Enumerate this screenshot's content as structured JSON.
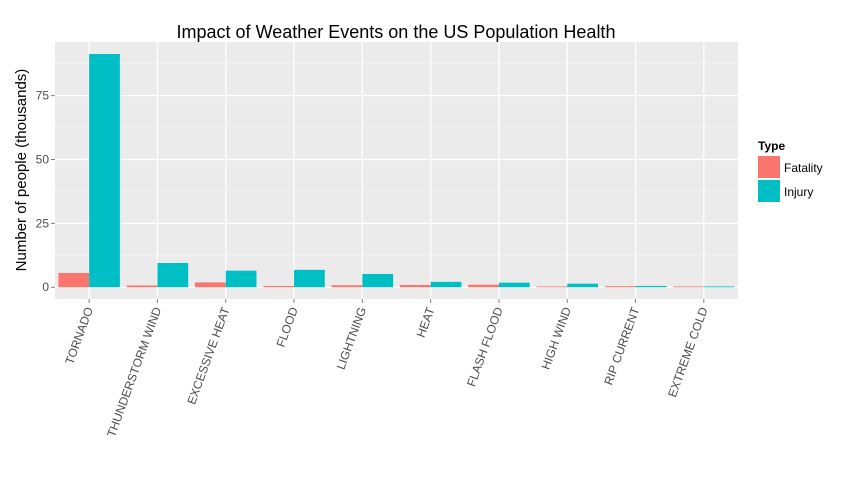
{
  "chart_data": {
    "type": "bar",
    "title": "Impact of Weather Events on the US Population Health",
    "xlabel": "",
    "ylabel": "Number of people (thousands)",
    "categories": [
      "TORNADO",
      "THUNDERSTORM WIND",
      "EXCESSIVE HEAT",
      "FLOOD",
      "LIGHTNING",
      "HEAT",
      "FLASH FLOOD",
      "HIGH WIND",
      "RIP CURRENT",
      "EXTREME COLD"
    ],
    "series": [
      {
        "name": "Fatality",
        "values": [
          5.6,
          0.7,
          1.9,
          0.5,
          0.8,
          0.9,
          1.0,
          0.3,
          0.4,
          0.3
        ],
        "color": "#F8766D"
      },
      {
        "name": "Injury",
        "values": [
          91.3,
          9.5,
          6.5,
          6.8,
          5.2,
          2.1,
          1.8,
          1.4,
          0.5,
          0.3
        ],
        "color": "#00BFC4"
      }
    ],
    "yticks": [
      0,
      25,
      50,
      75
    ],
    "ylim": [
      -4.6,
      96
    ],
    "grid": true,
    "legend": {
      "title": "Type",
      "position": "right"
    }
  }
}
